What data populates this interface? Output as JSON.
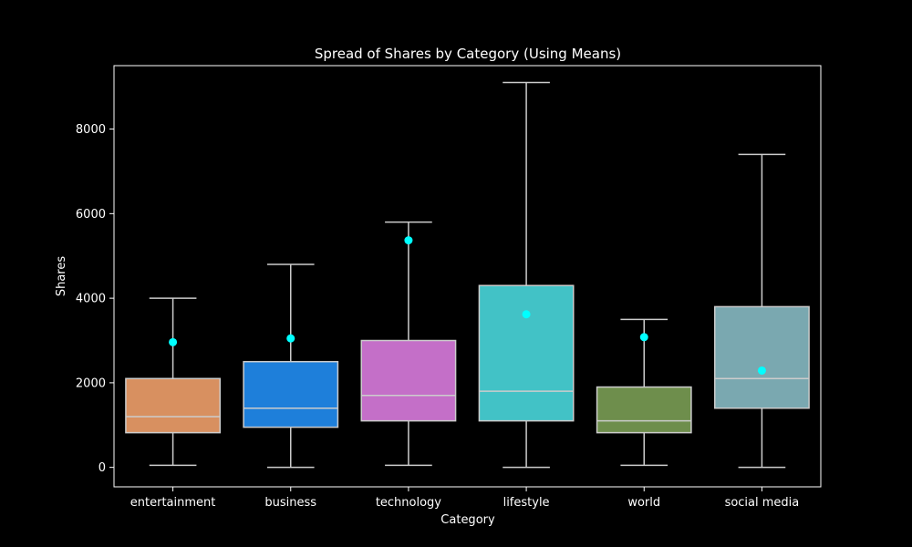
{
  "chart_data": {
    "type": "box",
    "title": "Spread of Shares by Category (Using Means)",
    "xlabel": "Category",
    "ylabel": "Shares",
    "ylim": [
      -460,
      9500
    ],
    "yticks": [
      0,
      2000,
      4000,
      6000,
      8000
    ],
    "grid": false,
    "background": "#000000",
    "box_edge_color": "#cccccc",
    "mean_color": "#00ffff",
    "categories": [
      "entertainment",
      "business",
      "technology",
      "lifestyle",
      "world",
      "social media"
    ],
    "boxes": [
      {
        "category": "entertainment",
        "whisker_low": 50,
        "q1": 820,
        "median": 1200,
        "q3": 2100,
        "whisker_high": 4000,
        "mean": 2960,
        "color": "#d89060"
      },
      {
        "category": "business",
        "whisker_low": 0,
        "q1": 950,
        "median": 1400,
        "q3": 2500,
        "whisker_high": 4800,
        "mean": 3050,
        "color": "#1e7fda"
      },
      {
        "category": "technology",
        "whisker_low": 50,
        "q1": 1100,
        "median": 1700,
        "q3": 3000,
        "whisker_high": 5800,
        "mean": 5370,
        "color": "#c46fc8"
      },
      {
        "category": "lifestyle",
        "whisker_low": 0,
        "q1": 1100,
        "median": 1800,
        "q3": 4300,
        "whisker_high": 9100,
        "mean": 3620,
        "color": "#42c2c6"
      },
      {
        "category": "world",
        "whisker_low": 50,
        "q1": 820,
        "median": 1100,
        "q3": 1900,
        "whisker_high": 3500,
        "mean": 3080,
        "color": "#6e8e4c"
      },
      {
        "category": "social media",
        "whisker_low": 0,
        "q1": 1400,
        "median": 2100,
        "q3": 3800,
        "whisker_high": 7400,
        "mean": 2290,
        "color": "#7aa8b0"
      }
    ]
  }
}
